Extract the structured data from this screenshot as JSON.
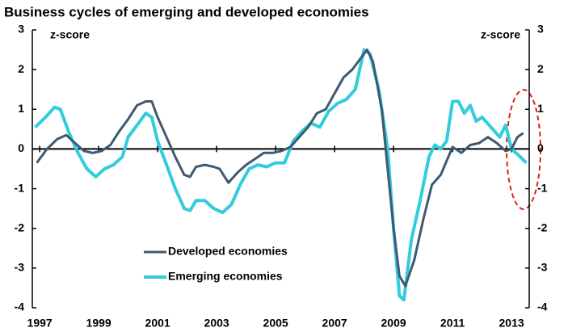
{
  "chart_data": {
    "type": "line",
    "title": "Business cycles of emerging and developed economies",
    "ylabel": "z-score",
    "y2label": "z-score",
    "xlim": [
      1996.75,
      2013.6
    ],
    "xticks": [
      1997,
      1999,
      2001,
      2003,
      2005,
      2007,
      2009,
      2011,
      2013
    ],
    "ylim": [
      -4,
      3
    ],
    "yticks": [
      3,
      2,
      1,
      0,
      -1,
      -2,
      -3,
      -4
    ],
    "y2lim": [
      -4,
      3
    ],
    "y2ticks": [
      3,
      2,
      1,
      0,
      -1,
      -2,
      -3,
      -4
    ],
    "legend": "lower left",
    "series": [
      {
        "name": "Developed economies",
        "color": "#3d5a73",
        "x": [
          1996.9,
          1997.25,
          1997.6,
          1997.9,
          1998.2,
          1998.5,
          1998.8,
          1999.1,
          1999.4,
          1999.7,
          2000.0,
          2000.3,
          2000.6,
          2000.8,
          2001.0,
          2001.3,
          2001.6,
          2001.9,
          2002.1,
          2002.3,
          2002.6,
          2002.9,
          2003.1,
          2003.4,
          2003.7,
          2004.0,
          2004.3,
          2004.6,
          2004.9,
          2005.2,
          2005.5,
          2005.8,
          2006.1,
          2006.4,
          2006.7,
          2007.0,
          2007.3,
          2007.6,
          2007.9,
          2008.1,
          2008.3,
          2008.6,
          2008.8,
          2009.0,
          2009.2,
          2009.4,
          2009.7,
          2010.0,
          2010.3,
          2010.6,
          2010.8,
          2011.0,
          2011.3,
          2011.6,
          2011.9,
          2012.2,
          2012.5,
          2012.8,
          2013.0,
          2013.2,
          2013.4
        ],
        "values": [
          -0.35,
          0.0,
          0.25,
          0.35,
          0.15,
          -0.05,
          -0.1,
          -0.05,
          0.1,
          0.45,
          0.75,
          1.1,
          1.2,
          1.2,
          0.8,
          0.3,
          -0.2,
          -0.65,
          -0.7,
          -0.45,
          -0.4,
          -0.45,
          -0.5,
          -0.85,
          -0.6,
          -0.4,
          -0.25,
          -0.1,
          -0.1,
          -0.05,
          0.05,
          0.3,
          0.55,
          0.9,
          1.0,
          1.4,
          1.8,
          2.0,
          2.3,
          2.5,
          2.2,
          1.0,
          -0.5,
          -2.0,
          -3.2,
          -3.45,
          -2.8,
          -1.8,
          -0.9,
          -0.65,
          -0.3,
          0.05,
          -0.1,
          0.1,
          0.15,
          0.3,
          0.15,
          -0.05,
          0.0,
          0.3,
          0.4
        ]
      },
      {
        "name": "Emerging economies",
        "color": "#33ccdd",
        "x": [
          1996.85,
          1997.2,
          1997.5,
          1997.7,
          1998.0,
          1998.3,
          1998.6,
          1998.9,
          1999.2,
          1999.5,
          1999.8,
          2000.0,
          2000.3,
          2000.6,
          2000.8,
          2001.0,
          2001.3,
          2001.6,
          2001.9,
          2002.1,
          2002.3,
          2002.6,
          2002.9,
          2003.2,
          2003.5,
          2003.8,
          2004.1,
          2004.4,
          2004.7,
          2005.0,
          2005.3,
          2005.6,
          2005.9,
          2006.2,
          2006.5,
          2006.8,
          2007.1,
          2007.4,
          2007.7,
          2008.0,
          2008.2,
          2008.5,
          2008.8,
          2009.0,
          2009.2,
          2009.35,
          2009.6,
          2009.9,
          2010.2,
          2010.4,
          2010.6,
          2010.8,
          2011.0,
          2011.2,
          2011.4,
          2011.6,
          2011.8,
          2012.0,
          2012.3,
          2012.6,
          2012.8,
          2013.0,
          2013.3,
          2013.5
        ],
        "values": [
          0.55,
          0.8,
          1.05,
          1.0,
          0.4,
          -0.1,
          -0.5,
          -0.7,
          -0.5,
          -0.4,
          -0.2,
          0.3,
          0.6,
          0.9,
          0.8,
          0.2,
          -0.4,
          -1.0,
          -1.5,
          -1.55,
          -1.3,
          -1.3,
          -1.5,
          -1.6,
          -1.4,
          -0.9,
          -0.5,
          -0.4,
          -0.45,
          -0.35,
          -0.35,
          0.2,
          0.45,
          0.65,
          0.55,
          0.95,
          1.15,
          1.25,
          1.5,
          2.5,
          2.4,
          1.5,
          0.0,
          -2.0,
          -3.7,
          -3.8,
          -2.3,
          -1.3,
          -0.2,
          0.1,
          0.0,
          0.2,
          1.2,
          1.2,
          0.9,
          1.1,
          0.7,
          0.8,
          0.55,
          0.3,
          0.6,
          0.0,
          -0.2,
          -0.35
        ]
      }
    ]
  }
}
